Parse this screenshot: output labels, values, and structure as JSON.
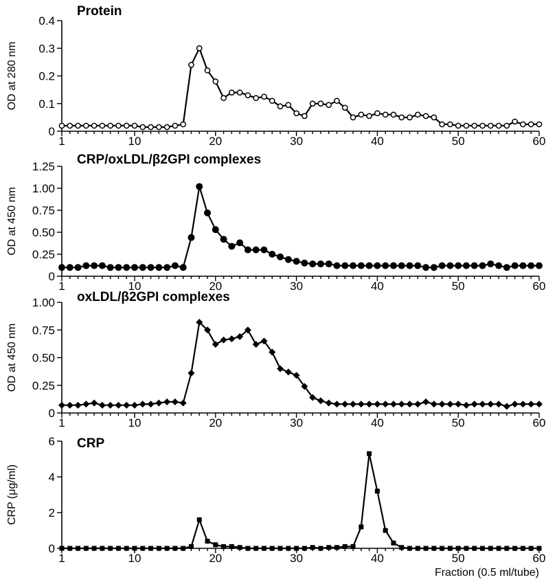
{
  "chart_data": [
    {
      "type": "line",
      "title": "Protein",
      "ylabel": "OD at 280 nm",
      "xlabel": "",
      "marker": "open-circle",
      "xlim": [
        1,
        60
      ],
      "ylim": [
        0,
        0.4
      ],
      "xticks": [
        1,
        10,
        20,
        30,
        40,
        50,
        60
      ],
      "xtick_labels": [
        "1",
        "10",
        "20",
        "30",
        "40",
        "50",
        "60"
      ],
      "yticks": [
        0,
        0.1,
        0.2,
        0.3,
        0.4
      ],
      "ytick_labels": [
        "0",
        "0.1",
        "0.2",
        "0.3",
        "0.4"
      ],
      "x": [
        1,
        2,
        3,
        4,
        5,
        6,
        7,
        8,
        9,
        10,
        11,
        12,
        13,
        14,
        15,
        16,
        17,
        18,
        19,
        20,
        21,
        22,
        23,
        24,
        25,
        26,
        27,
        28,
        29,
        30,
        31,
        32,
        33,
        34,
        35,
        36,
        37,
        38,
        39,
        40,
        41,
        42,
        43,
        44,
        45,
        46,
        47,
        48,
        49,
        50,
        51,
        52,
        53,
        54,
        55,
        56,
        57,
        58,
        59,
        60
      ],
      "values": [
        0.02,
        0.02,
        0.02,
        0.02,
        0.02,
        0.02,
        0.02,
        0.02,
        0.02,
        0.02,
        0.015,
        0.015,
        0.015,
        0.015,
        0.02,
        0.025,
        0.24,
        0.3,
        0.22,
        0.18,
        0.12,
        0.14,
        0.14,
        0.13,
        0.12,
        0.125,
        0.11,
        0.09,
        0.095,
        0.065,
        0.055,
        0.1,
        0.1,
        0.095,
        0.11,
        0.085,
        0.05,
        0.06,
        0.055,
        0.065,
        0.06,
        0.06,
        0.05,
        0.05,
        0.06,
        0.055,
        0.05,
        0.025,
        0.025,
        0.02,
        0.02,
        0.02,
        0.02,
        0.02,
        0.02,
        0.02,
        0.035,
        0.025,
        0.025,
        0.025
      ]
    },
    {
      "type": "line",
      "title": "CRP/oxLDL/β2GPI complexes",
      "ylabel": "OD at 450 nm",
      "xlabel": "",
      "marker": "filled-circle",
      "xlim": [
        1,
        60
      ],
      "ylim": [
        0,
        1.25
      ],
      "xticks": [
        1,
        10,
        20,
        30,
        40,
        50,
        60
      ],
      "xtick_labels": [
        "1",
        "10",
        "20",
        "30",
        "40",
        "50",
        "60"
      ],
      "yticks": [
        0,
        0.25,
        0.5,
        0.75,
        1.0,
        1.25
      ],
      "ytick_labels": [
        "0",
        "0.25",
        "0.50",
        "0.75",
        "1.00",
        "1.25"
      ],
      "x": [
        1,
        2,
        3,
        4,
        5,
        6,
        7,
        8,
        9,
        10,
        11,
        12,
        13,
        14,
        15,
        16,
        17,
        18,
        19,
        20,
        21,
        22,
        23,
        24,
        25,
        26,
        27,
        28,
        29,
        30,
        31,
        32,
        33,
        34,
        35,
        36,
        37,
        38,
        39,
        40,
        41,
        42,
        43,
        44,
        45,
        46,
        47,
        48,
        49,
        50,
        51,
        52,
        53,
        54,
        55,
        56,
        57,
        58,
        59,
        60
      ],
      "values": [
        0.1,
        0.1,
        0.1,
        0.12,
        0.12,
        0.12,
        0.1,
        0.1,
        0.1,
        0.1,
        0.1,
        0.1,
        0.1,
        0.1,
        0.12,
        0.1,
        0.44,
        1.02,
        0.72,
        0.53,
        0.42,
        0.34,
        0.38,
        0.3,
        0.3,
        0.3,
        0.25,
        0.22,
        0.19,
        0.17,
        0.15,
        0.14,
        0.14,
        0.14,
        0.12,
        0.12,
        0.12,
        0.12,
        0.12,
        0.12,
        0.12,
        0.12,
        0.12,
        0.12,
        0.12,
        0.1,
        0.1,
        0.12,
        0.12,
        0.12,
        0.12,
        0.12,
        0.12,
        0.14,
        0.12,
        0.1,
        0.12,
        0.12,
        0.12,
        0.12
      ]
    },
    {
      "type": "line",
      "title": "oxLDL/β2GPI complexes",
      "ylabel": "OD at 450 nm",
      "xlabel": "",
      "marker": "filled-diamond",
      "xlim": [
        1,
        60
      ],
      "ylim": [
        0,
        1.0
      ],
      "xticks": [
        1,
        10,
        20,
        30,
        40,
        50,
        60
      ],
      "xtick_labels": [
        "1",
        "10",
        "20",
        "30",
        "40",
        "50",
        "60"
      ],
      "yticks": [
        0,
        0.25,
        0.5,
        0.75,
        1.0
      ],
      "ytick_labels": [
        "0",
        "0.25",
        "0.50",
        "0.75",
        "1.00"
      ],
      "x": [
        1,
        2,
        3,
        4,
        5,
        6,
        7,
        8,
        9,
        10,
        11,
        12,
        13,
        14,
        15,
        16,
        17,
        18,
        19,
        20,
        21,
        22,
        23,
        24,
        25,
        26,
        27,
        28,
        29,
        30,
        31,
        32,
        33,
        34,
        35,
        36,
        37,
        38,
        39,
        40,
        41,
        42,
        43,
        44,
        45,
        46,
        47,
        48,
        49,
        50,
        51,
        52,
        53,
        54,
        55,
        56,
        57,
        58,
        59,
        60
      ],
      "values": [
        0.07,
        0.07,
        0.07,
        0.08,
        0.09,
        0.07,
        0.07,
        0.07,
        0.07,
        0.07,
        0.08,
        0.08,
        0.09,
        0.1,
        0.1,
        0.09,
        0.36,
        0.82,
        0.75,
        0.62,
        0.66,
        0.67,
        0.69,
        0.75,
        0.62,
        0.65,
        0.55,
        0.4,
        0.37,
        0.34,
        0.24,
        0.14,
        0.11,
        0.09,
        0.08,
        0.08,
        0.08,
        0.08,
        0.08,
        0.08,
        0.08,
        0.08,
        0.08,
        0.08,
        0.08,
        0.1,
        0.08,
        0.08,
        0.08,
        0.08,
        0.07,
        0.08,
        0.08,
        0.08,
        0.08,
        0.06,
        0.08,
        0.08,
        0.08,
        0.08
      ]
    },
    {
      "type": "line",
      "title": "CRP",
      "ylabel": "CRP (μg/ml)",
      "xlabel": "Fraction (0.5 ml/tube)",
      "marker": "filled-square",
      "xlim": [
        1,
        60
      ],
      "ylim": [
        0,
        6
      ],
      "xticks": [
        1,
        10,
        20,
        30,
        40,
        50,
        60
      ],
      "xtick_labels": [
        "1",
        "10",
        "20",
        "30",
        "40",
        "50",
        "60"
      ],
      "yticks": [
        0,
        2,
        4,
        6
      ],
      "ytick_labels": [
        "0",
        "2",
        "4",
        "6"
      ],
      "x": [
        1,
        2,
        3,
        4,
        5,
        6,
        7,
        8,
        9,
        10,
        11,
        12,
        13,
        14,
        15,
        16,
        17,
        18,
        19,
        20,
        21,
        22,
        23,
        24,
        25,
        26,
        27,
        28,
        29,
        30,
        31,
        32,
        33,
        34,
        35,
        36,
        37,
        38,
        39,
        40,
        41,
        42,
        43,
        44,
        45,
        46,
        47,
        48,
        49,
        50,
        51,
        52,
        53,
        54,
        55,
        56,
        57,
        58,
        59,
        60
      ],
      "values": [
        0,
        0,
        0,
        0,
        0,
        0,
        0,
        0,
        0,
        0,
        0,
        0,
        0,
        0,
        0,
        0,
        0.1,
        1.6,
        0.4,
        0.2,
        0.1,
        0.1,
        0.05,
        0,
        0,
        0,
        0,
        0,
        0,
        0,
        0,
        0.05,
        0,
        0.05,
        0.05,
        0.1,
        0.1,
        1.2,
        5.3,
        3.2,
        1.0,
        0.3,
        0.05,
        0,
        0,
        0,
        0,
        0,
        0,
        0,
        0,
        0,
        0,
        0,
        0,
        0,
        0,
        0,
        0,
        0
      ]
    }
  ]
}
